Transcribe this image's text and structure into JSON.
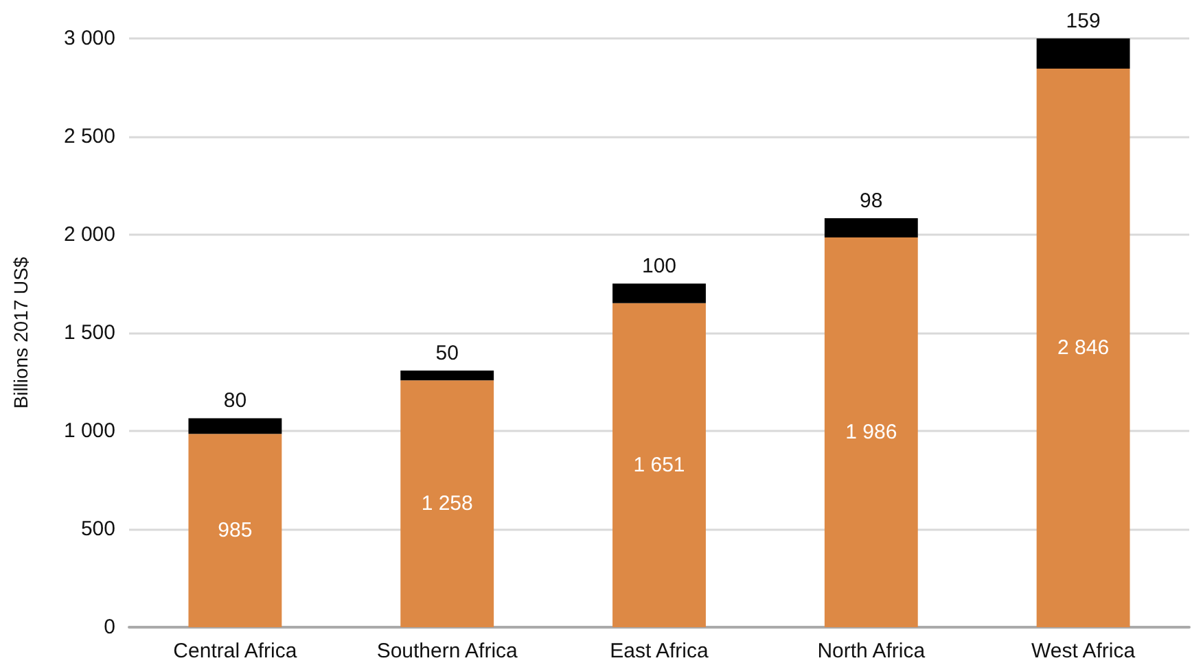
{
  "chart_data": {
    "type": "bar",
    "ylabel": "Billions 2017 US$",
    "categories": [
      "Central Africa",
      "Southern Africa",
      "East Africa",
      "North Africa",
      "West Africa"
    ],
    "series": [
      {
        "color": "#dd8945",
        "values": [
          985,
          1258,
          1651,
          1986,
          2846
        ],
        "value_labels": [
          "985",
          "1 258",
          "1 651",
          "1 986",
          "2 846"
        ]
      },
      {
        "color": "#000000",
        "values": [
          80,
          50,
          100,
          98,
          159
        ],
        "value_labels": [
          "80",
          "50",
          "100",
          "98",
          "159"
        ]
      }
    ],
    "stacked": true,
    "ylim": [
      0,
      3000
    ],
    "yticks": [
      0,
      500,
      {
        "value": 1000,
        "label": "1 000"
      },
      {
        "value": 1500,
        "label": "1 500"
      },
      {
        "value": 2000,
        "label": "2 000"
      },
      {
        "value": 2500,
        "label": "2 500"
      },
      {
        "value": 3000,
        "label": "3 000"
      }
    ],
    "grid": "y"
  }
}
